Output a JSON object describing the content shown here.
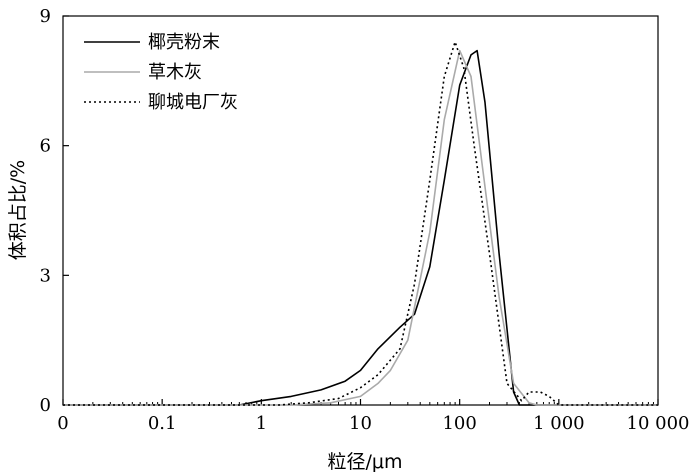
{
  "chart_data": {
    "type": "line",
    "xscale": "log",
    "xlabel": "粒径/μm",
    "ylabel": "体积占比/%",
    "ylim": [
      0,
      9
    ],
    "yticks": [
      0,
      3,
      6,
      9
    ],
    "ytick_labels": [
      "0",
      "3",
      "6",
      "9"
    ],
    "xticks": [
      0.01,
      0.1,
      1,
      10,
      100,
      1000,
      10000
    ],
    "xtick_labels": [
      "0",
      "0.1",
      "1",
      "10",
      "100",
      "1 000",
      "10 000"
    ],
    "xlim": [
      0.01,
      10000
    ],
    "legend_position": "top-left",
    "grid": false,
    "series": [
      {
        "name": "椰壳粉末",
        "color": "#000000",
        "dash": "solid",
        "x": [
          0.01,
          0.6,
          1,
          2,
          4,
          7,
          10,
          15,
          25,
          35,
          50,
          70,
          100,
          130,
          150,
          180,
          250,
          350,
          400,
          1000,
          10000
        ],
        "y": [
          0,
          0,
          0.1,
          0.2,
          0.35,
          0.55,
          0.8,
          1.3,
          1.8,
          2.1,
          3.2,
          5.2,
          7.4,
          8.1,
          8.2,
          7.0,
          3.5,
          0.3,
          0,
          0,
          0
        ]
      },
      {
        "name": "草木灰",
        "color": "#aaaaaa",
        "dash": "solid",
        "x": [
          0.01,
          2,
          5,
          10,
          15,
          20,
          30,
          50,
          70,
          100,
          130,
          170,
          250,
          350,
          500,
          600,
          10000
        ],
        "y": [
          0,
          0,
          0.05,
          0.2,
          0.5,
          0.8,
          1.5,
          4.0,
          6.6,
          8.2,
          7.6,
          5.5,
          2.5,
          0.5,
          0.05,
          0,
          0
        ]
      },
      {
        "name": "聊城电厂灰",
        "color": "#000000",
        "dash": "dotted",
        "x": [
          0.01,
          1.5,
          3,
          6,
          10,
          15,
          25,
          35,
          50,
          70,
          90,
          110,
          140,
          200,
          300,
          420,
          500,
          650,
          800,
          1000,
          10000
        ],
        "y": [
          0,
          0,
          0.05,
          0.15,
          0.4,
          0.7,
          1.3,
          2.8,
          5.2,
          7.6,
          8.4,
          7.8,
          6.0,
          3.5,
          0.5,
          0.1,
          0.3,
          0.3,
          0.2,
          0,
          0
        ]
      }
    ]
  }
}
